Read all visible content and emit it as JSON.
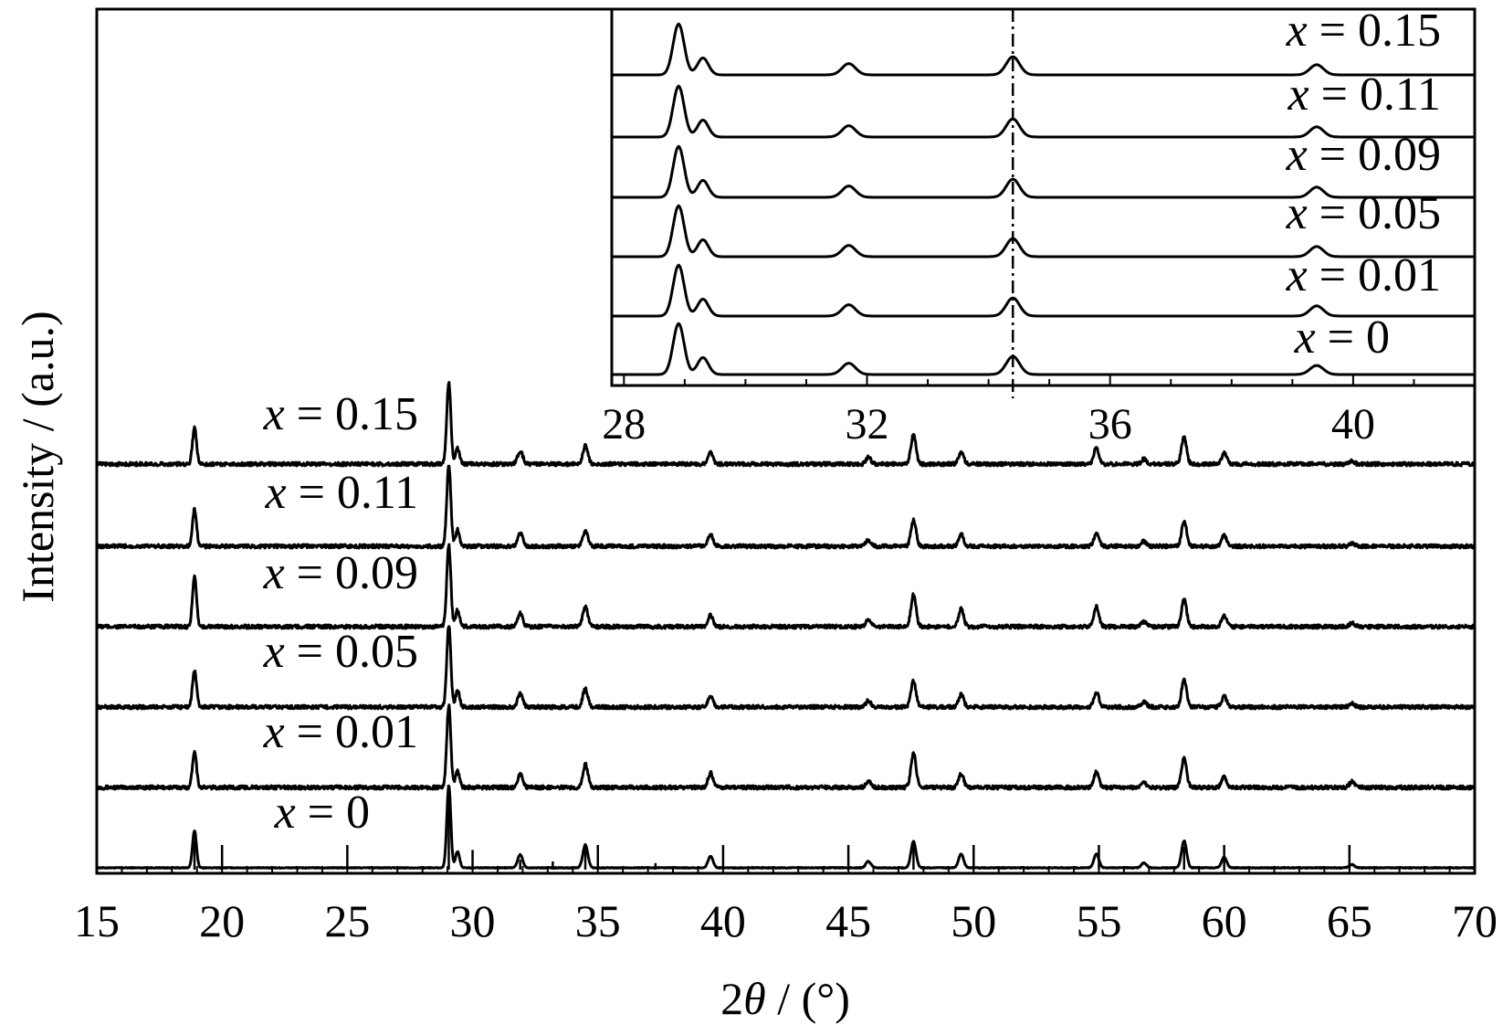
{
  "chart_data": [
    {
      "type": "line",
      "title": "",
      "xlabel_parts": [
        "2",
        "θ",
        " / (°)"
      ],
      "ylabel": "Intensity / (a.u.)",
      "xlim": [
        15,
        70
      ],
      "x_ticks": [
        15,
        20,
        25,
        30,
        35,
        40,
        45,
        50,
        55,
        60,
        65,
        70
      ],
      "x_minor_step": 1,
      "grid": false,
      "legend": "none",
      "series": [
        {
          "name": "x = 0",
          "label_var": "x",
          "label_value": "= 0",
          "peaks": [
            [
              18.9,
              0.45
            ],
            [
              29.05,
              1.0
            ],
            [
              29.4,
              0.2
            ],
            [
              31.9,
              0.16
            ],
            [
              34.5,
              0.28
            ],
            [
              39.5,
              0.14
            ],
            [
              45.8,
              0.08
            ],
            [
              47.6,
              0.32
            ],
            [
              49.5,
              0.17
            ],
            [
              54.9,
              0.17
            ],
            [
              56.8,
              0.06
            ],
            [
              58.4,
              0.33
            ],
            [
              60.0,
              0.13
            ],
            [
              65.1,
              0.04
            ]
          ]
        },
        {
          "name": "x = 0.01",
          "label_var": "x",
          "label_value": "= 0.01",
          "peaks": [
            [
              18.9,
              0.45
            ],
            [
              29.05,
              1.0
            ],
            [
              29.4,
              0.2
            ],
            [
              31.9,
              0.16
            ],
            [
              34.5,
              0.28
            ],
            [
              39.5,
              0.18
            ],
            [
              45.8,
              0.08
            ],
            [
              47.6,
              0.42
            ],
            [
              49.5,
              0.17
            ],
            [
              54.9,
              0.19
            ],
            [
              56.8,
              0.06
            ],
            [
              58.4,
              0.35
            ],
            [
              60.0,
              0.13
            ],
            [
              65.1,
              0.07
            ]
          ]
        },
        {
          "name": "x = 0.05",
          "label_var": "x",
          "label_value": "= 0.05",
          "peaks": [
            [
              18.9,
              0.45
            ],
            [
              29.05,
              1.0
            ],
            [
              29.4,
              0.2
            ],
            [
              31.9,
              0.16
            ],
            [
              34.5,
              0.22
            ],
            [
              39.5,
              0.14
            ],
            [
              45.8,
              0.08
            ],
            [
              47.6,
              0.32
            ],
            [
              49.5,
              0.15
            ],
            [
              54.9,
              0.18
            ],
            [
              56.8,
              0.06
            ],
            [
              58.4,
              0.33
            ],
            [
              60.0,
              0.13
            ],
            [
              65.1,
              0.04
            ]
          ]
        },
        {
          "name": "x = 0.09",
          "label_var": "x",
          "label_value": "= 0.09",
          "peaks": [
            [
              18.9,
              0.6
            ],
            [
              29.05,
              1.0
            ],
            [
              29.4,
              0.2
            ],
            [
              31.9,
              0.16
            ],
            [
              34.5,
              0.24
            ],
            [
              39.5,
              0.14
            ],
            [
              45.8,
              0.08
            ],
            [
              47.6,
              0.39
            ],
            [
              49.5,
              0.22
            ],
            [
              54.9,
              0.24
            ],
            [
              56.8,
              0.06
            ],
            [
              58.4,
              0.33
            ],
            [
              60.0,
              0.13
            ],
            [
              65.1,
              0.04
            ]
          ]
        },
        {
          "name": "x = 0.11",
          "label_var": "x",
          "label_value": "= 0.11",
          "peaks": [
            [
              18.9,
              0.45
            ],
            [
              29.05,
              1.0
            ],
            [
              29.4,
              0.2
            ],
            [
              31.9,
              0.16
            ],
            [
              34.5,
              0.18
            ],
            [
              39.5,
              0.14
            ],
            [
              45.8,
              0.08
            ],
            [
              47.6,
              0.32
            ],
            [
              49.5,
              0.15
            ],
            [
              54.9,
              0.15
            ],
            [
              56.8,
              0.06
            ],
            [
              58.4,
              0.3
            ],
            [
              60.0,
              0.13
            ],
            [
              65.1,
              0.04
            ]
          ]
        },
        {
          "name": "x = 0.15",
          "label_var": "x",
          "label_value": "= 0.15",
          "peaks": [
            [
              18.9,
              0.45
            ],
            [
              29.05,
              1.0
            ],
            [
              29.4,
              0.2
            ],
            [
              31.9,
              0.16
            ],
            [
              34.5,
              0.22
            ],
            [
              39.5,
              0.14
            ],
            [
              45.8,
              0.08
            ],
            [
              47.6,
              0.36
            ],
            [
              49.5,
              0.15
            ],
            [
              54.9,
              0.2
            ],
            [
              56.8,
              0.06
            ],
            [
              58.4,
              0.33
            ],
            [
              60.0,
              0.13
            ],
            [
              65.1,
              0.04
            ]
          ]
        }
      ],
      "reference_peaks": [
        [
          18.9,
          0.35
        ],
        [
          20.0,
          0.3
        ],
        [
          25.0,
          0.3
        ],
        [
          29.05,
          1.0
        ],
        [
          30.0,
          0.24
        ],
        [
          31.9,
          0.12
        ],
        [
          33.2,
          0.1
        ],
        [
          34.5,
          0.3
        ],
        [
          35.0,
          0.3
        ],
        [
          37.3,
          0.08
        ],
        [
          40.0,
          0.3
        ],
        [
          45.0,
          0.3
        ],
        [
          47.6,
          0.3
        ],
        [
          50.0,
          0.3
        ],
        [
          55.0,
          0.3
        ],
        [
          58.4,
          0.28
        ],
        [
          60.0,
          0.3
        ],
        [
          65.0,
          0.3
        ],
        [
          70.0,
          0.24
        ]
      ]
    },
    {
      "type": "line",
      "title": "",
      "xlim": [
        27.8,
        42
      ],
      "x_ticks": [
        28,
        32,
        36,
        40
      ],
      "reference_line_x": 34.4,
      "series": [
        {
          "name": "x = 0",
          "label_var": "x",
          "label_value": "= 0",
          "peaks": [
            [
              28.9,
              0.9
            ],
            [
              29.3,
              0.3
            ],
            [
              31.7,
              0.2
            ],
            [
              34.4,
              0.32
            ],
            [
              39.4,
              0.16
            ]
          ]
        },
        {
          "name": "x = 0.01",
          "label_var": "x",
          "label_value": "= 0.01",
          "peaks": [
            [
              28.9,
              0.9
            ],
            [
              29.3,
              0.3
            ],
            [
              31.7,
              0.2
            ],
            [
              34.4,
              0.32
            ],
            [
              39.4,
              0.18
            ]
          ]
        },
        {
          "name": "x = 0.05",
          "label_var": "x",
          "label_value": "= 0.05",
          "peaks": [
            [
              28.9,
              0.9
            ],
            [
              29.3,
              0.3
            ],
            [
              31.7,
              0.2
            ],
            [
              34.4,
              0.32
            ],
            [
              39.4,
              0.18
            ]
          ]
        },
        {
          "name": "x = 0.09",
          "label_var": "x",
          "label_value": "= 0.09",
          "peaks": [
            [
              28.9,
              0.9
            ],
            [
              29.3,
              0.3
            ],
            [
              31.7,
              0.2
            ],
            [
              34.4,
              0.32
            ],
            [
              39.4,
              0.18
            ]
          ]
        },
        {
          "name": "x = 0.11",
          "label_var": "x",
          "label_value": "= 0.11",
          "peaks": [
            [
              28.9,
              0.9
            ],
            [
              29.3,
              0.3
            ],
            [
              31.7,
              0.2
            ],
            [
              34.4,
              0.32
            ],
            [
              39.4,
              0.18
            ]
          ]
        },
        {
          "name": "x = 0.15",
          "label_var": "x",
          "label_value": "= 0.15",
          "peaks": [
            [
              28.9,
              0.9
            ],
            [
              29.3,
              0.3
            ],
            [
              31.7,
              0.2
            ],
            [
              34.4,
              0.32
            ],
            [
              39.4,
              0.18
            ]
          ]
        }
      ]
    }
  ]
}
